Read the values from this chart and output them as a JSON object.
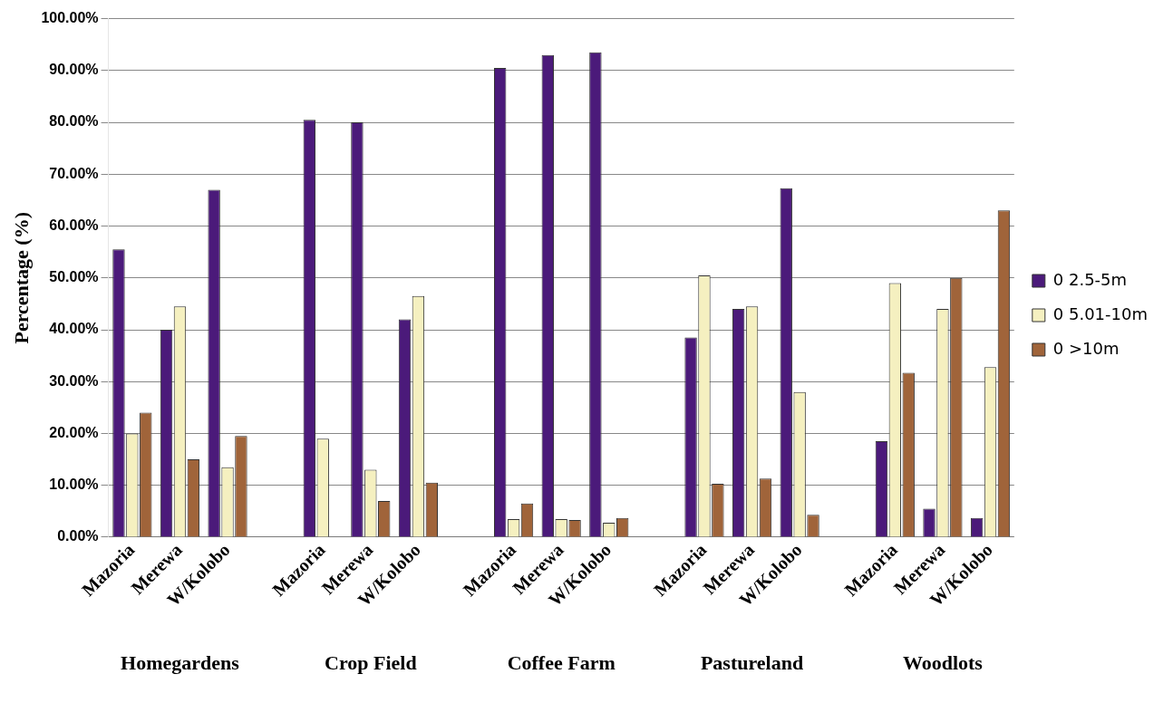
{
  "chart_data": {
    "type": "bar",
    "ylabel": "Percentage (%)",
    "categories": [
      "Mazoria",
      "Merewa",
      "W/Kolobo",
      null,
      "Mazoria",
      "Merewa",
      "W/Kolobo",
      null,
      "Mazoria",
      "Merewa",
      "W/Kolobo",
      null,
      "Mazoria",
      "Merewa",
      "W/Kolobo",
      null,
      "Mazoria",
      "Merewa",
      "W/Kolobo"
    ],
    "series": [
      {
        "name": "0 2.5-5m",
        "color": "#4b1a7a",
        "values": [
          55.5,
          40,
          67,
          null,
          80.5,
          80,
          42,
          null,
          90.5,
          93,
          93.5,
          null,
          38.5,
          44,
          67.3,
          null,
          18.5,
          5.5,
          3.7
        ]
      },
      {
        "name": "0 5.01-10m",
        "color": "#f5f0c0",
        "values": [
          20,
          44.5,
          13.5,
          null,
          19,
          13,
          46.5,
          null,
          3.5,
          3.5,
          2.8,
          null,
          50.5,
          44.5,
          28,
          null,
          49,
          44,
          32.8
        ]
      },
      {
        "name": "0 >10m",
        "color": "#a0643a",
        "values": [
          24,
          15,
          19.5,
          null,
          0,
          7,
          10.5,
          null,
          6.5,
          3.3,
          3.7,
          null,
          10.3,
          11.3,
          4.3,
          null,
          31.7,
          50,
          63
        ]
      }
    ],
    "ylim": [
      0,
      100
    ],
    "yticks": [
      {
        "value": 0,
        "label": "0.00%"
      },
      {
        "value": 10,
        "label": "10.00%"
      },
      {
        "value": 20,
        "label": "20.00%"
      },
      {
        "value": 30,
        "label": "30.00%"
      },
      {
        "value": 40,
        "label": "40.00%"
      },
      {
        "value": 50,
        "label": "50.00%"
      },
      {
        "value": 60,
        "label": "60.00%"
      },
      {
        "value": 70,
        "label": "70.00%"
      },
      {
        "value": 80,
        "label": "80.00%"
      },
      {
        "value": 90,
        "label": "90.00%"
      },
      {
        "value": 100,
        "label": "100.00%"
      }
    ],
    "grid": "y",
    "legend": "right",
    "annotations": [
      "Homegardens",
      "Crop Field",
      "Coffee Farm",
      "Pastureland",
      "Woodlots"
    ]
  }
}
